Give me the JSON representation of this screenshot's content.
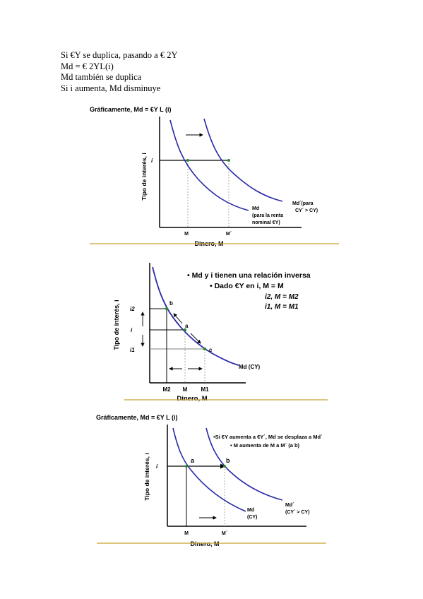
{
  "intro": {
    "line1": "Si €Y se duplica, pasando a € 2Y",
    "line2": "Md = € 2YL(i)",
    "line3": "Md también se duplica",
    "line4": "Si i aumenta, Md disminuye"
  },
  "figure1": {
    "title": "Gráficamente, Md = €Y L (i)",
    "ylabel": "Tipo de interés, i",
    "xlabel": "Dinero, M",
    "i_label": "i",
    "x_tick_m": "M",
    "x_tick_m2": "M´",
    "curve1_label": [
      "Md",
      "(para la renta",
      "nominal €Y)"
    ],
    "curve2_label": [
      "Md´(para",
      "CY´ > CY)"
    ]
  },
  "figure2": {
    "bullet1": "• Md y i tienen una relación inversa",
    "bullet2": "• Dado €Y en i, M = M",
    "eq1": "i2, M = M2",
    "eq2": "i1, M = M1",
    "ylabel": "Tipo de interés, i",
    "xlabel": "Dinero, M",
    "y_ticks": [
      "i2",
      "i",
      "i1"
    ],
    "x_ticks": [
      "M2",
      "M",
      "M1"
    ],
    "point_a": "a",
    "point_b": "b",
    "point_c": "c",
    "curve_label": "Md (CY)"
  },
  "figure3": {
    "title": "Gráficamente, Md = €Y L (i)",
    "bullet1": "•Si €Y aumenta a €Y´, Md se desplaza a Md´",
    "bullet2": "• M aumenta de M a M´ (a   b)",
    "ylabel": "Tipo de interés, i",
    "xlabel": "Dinero, M",
    "i_label": "i",
    "point_a": "a",
    "point_b": "b",
    "x_tick_m": "M",
    "x_tick_m2": "M´",
    "curve1_label": [
      "Md",
      "(CY)"
    ],
    "curve2_label": [
      "Md´",
      "(CY´ > CY)"
    ]
  },
  "colors": {
    "curve": "#2a2aa8",
    "rule": "#c8a02c",
    "guide": "#999999"
  }
}
